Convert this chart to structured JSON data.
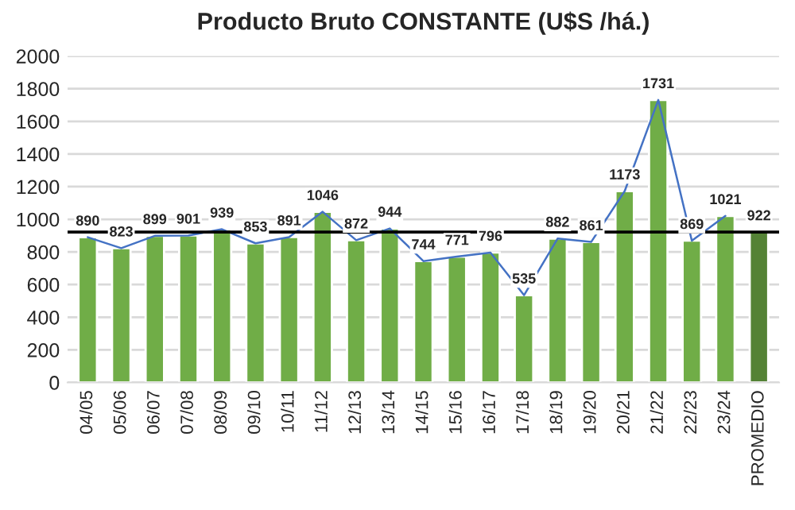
{
  "chart_data": {
    "type": "bar",
    "title": "Producto Bruto CONSTANTE (U$S /há.)",
    "categories": [
      "04/05",
      "05/06",
      "06/07",
      "07/08",
      "08/09",
      "09/10",
      "10/11",
      "11/12",
      "12/13",
      "13/14",
      "14/15",
      "15/16",
      "16/17",
      "17/18",
      "18/19",
      "19/20",
      "20/21",
      "21/22",
      "22/23",
      "23/24",
      "PROMEDIO"
    ],
    "series": [
      {
        "value_labels": [
          "890",
          "823",
          "899",
          "901",
          "939",
          "853",
          "891",
          "1046",
          "872",
          "944",
          "744",
          "771",
          "796",
          "535",
          "882",
          "861",
          "1173",
          "1731",
          "869",
          "1021",
          "922"
        ],
        "colors": [
          "#70ad47",
          "#70ad47",
          "#70ad47",
          "#70ad47",
          "#70ad47",
          "#70ad47",
          "#70ad47",
          "#70ad47",
          "#70ad47",
          "#70ad47",
          "#70ad47",
          "#70ad47",
          "#70ad47",
          "#70ad47",
          "#70ad47",
          "#70ad47",
          "#70ad47",
          "#70ad47",
          "#70ad47",
          "#70ad47",
          "#548235"
        ],
        "values": [
          890,
          823,
          899,
          901,
          939,
          853,
          891,
          1046,
          872,
          944,
          744,
          771,
          796,
          535,
          882,
          861,
          1173,
          1731,
          869,
          1021,
          922
        ]
      },
      {
        "type": "line",
        "color": "#4472c4",
        "values": [
          890,
          823,
          899,
          901,
          939,
          853,
          891,
          1046,
          872,
          944,
          744,
          771,
          796,
          535,
          882,
          861,
          1173,
          1731,
          869,
          1021,
          null
        ]
      }
    ],
    "ylim": [
      0,
      2000
    ],
    "yticks": [
      0,
      200,
      400,
      600,
      800,
      1000,
      1200,
      1400,
      1600,
      1800,
      2000
    ],
    "grid": "y",
    "ref_lines": [
      {
        "axis": "y",
        "value": 922,
        "color": "#000000"
      }
    ]
  }
}
